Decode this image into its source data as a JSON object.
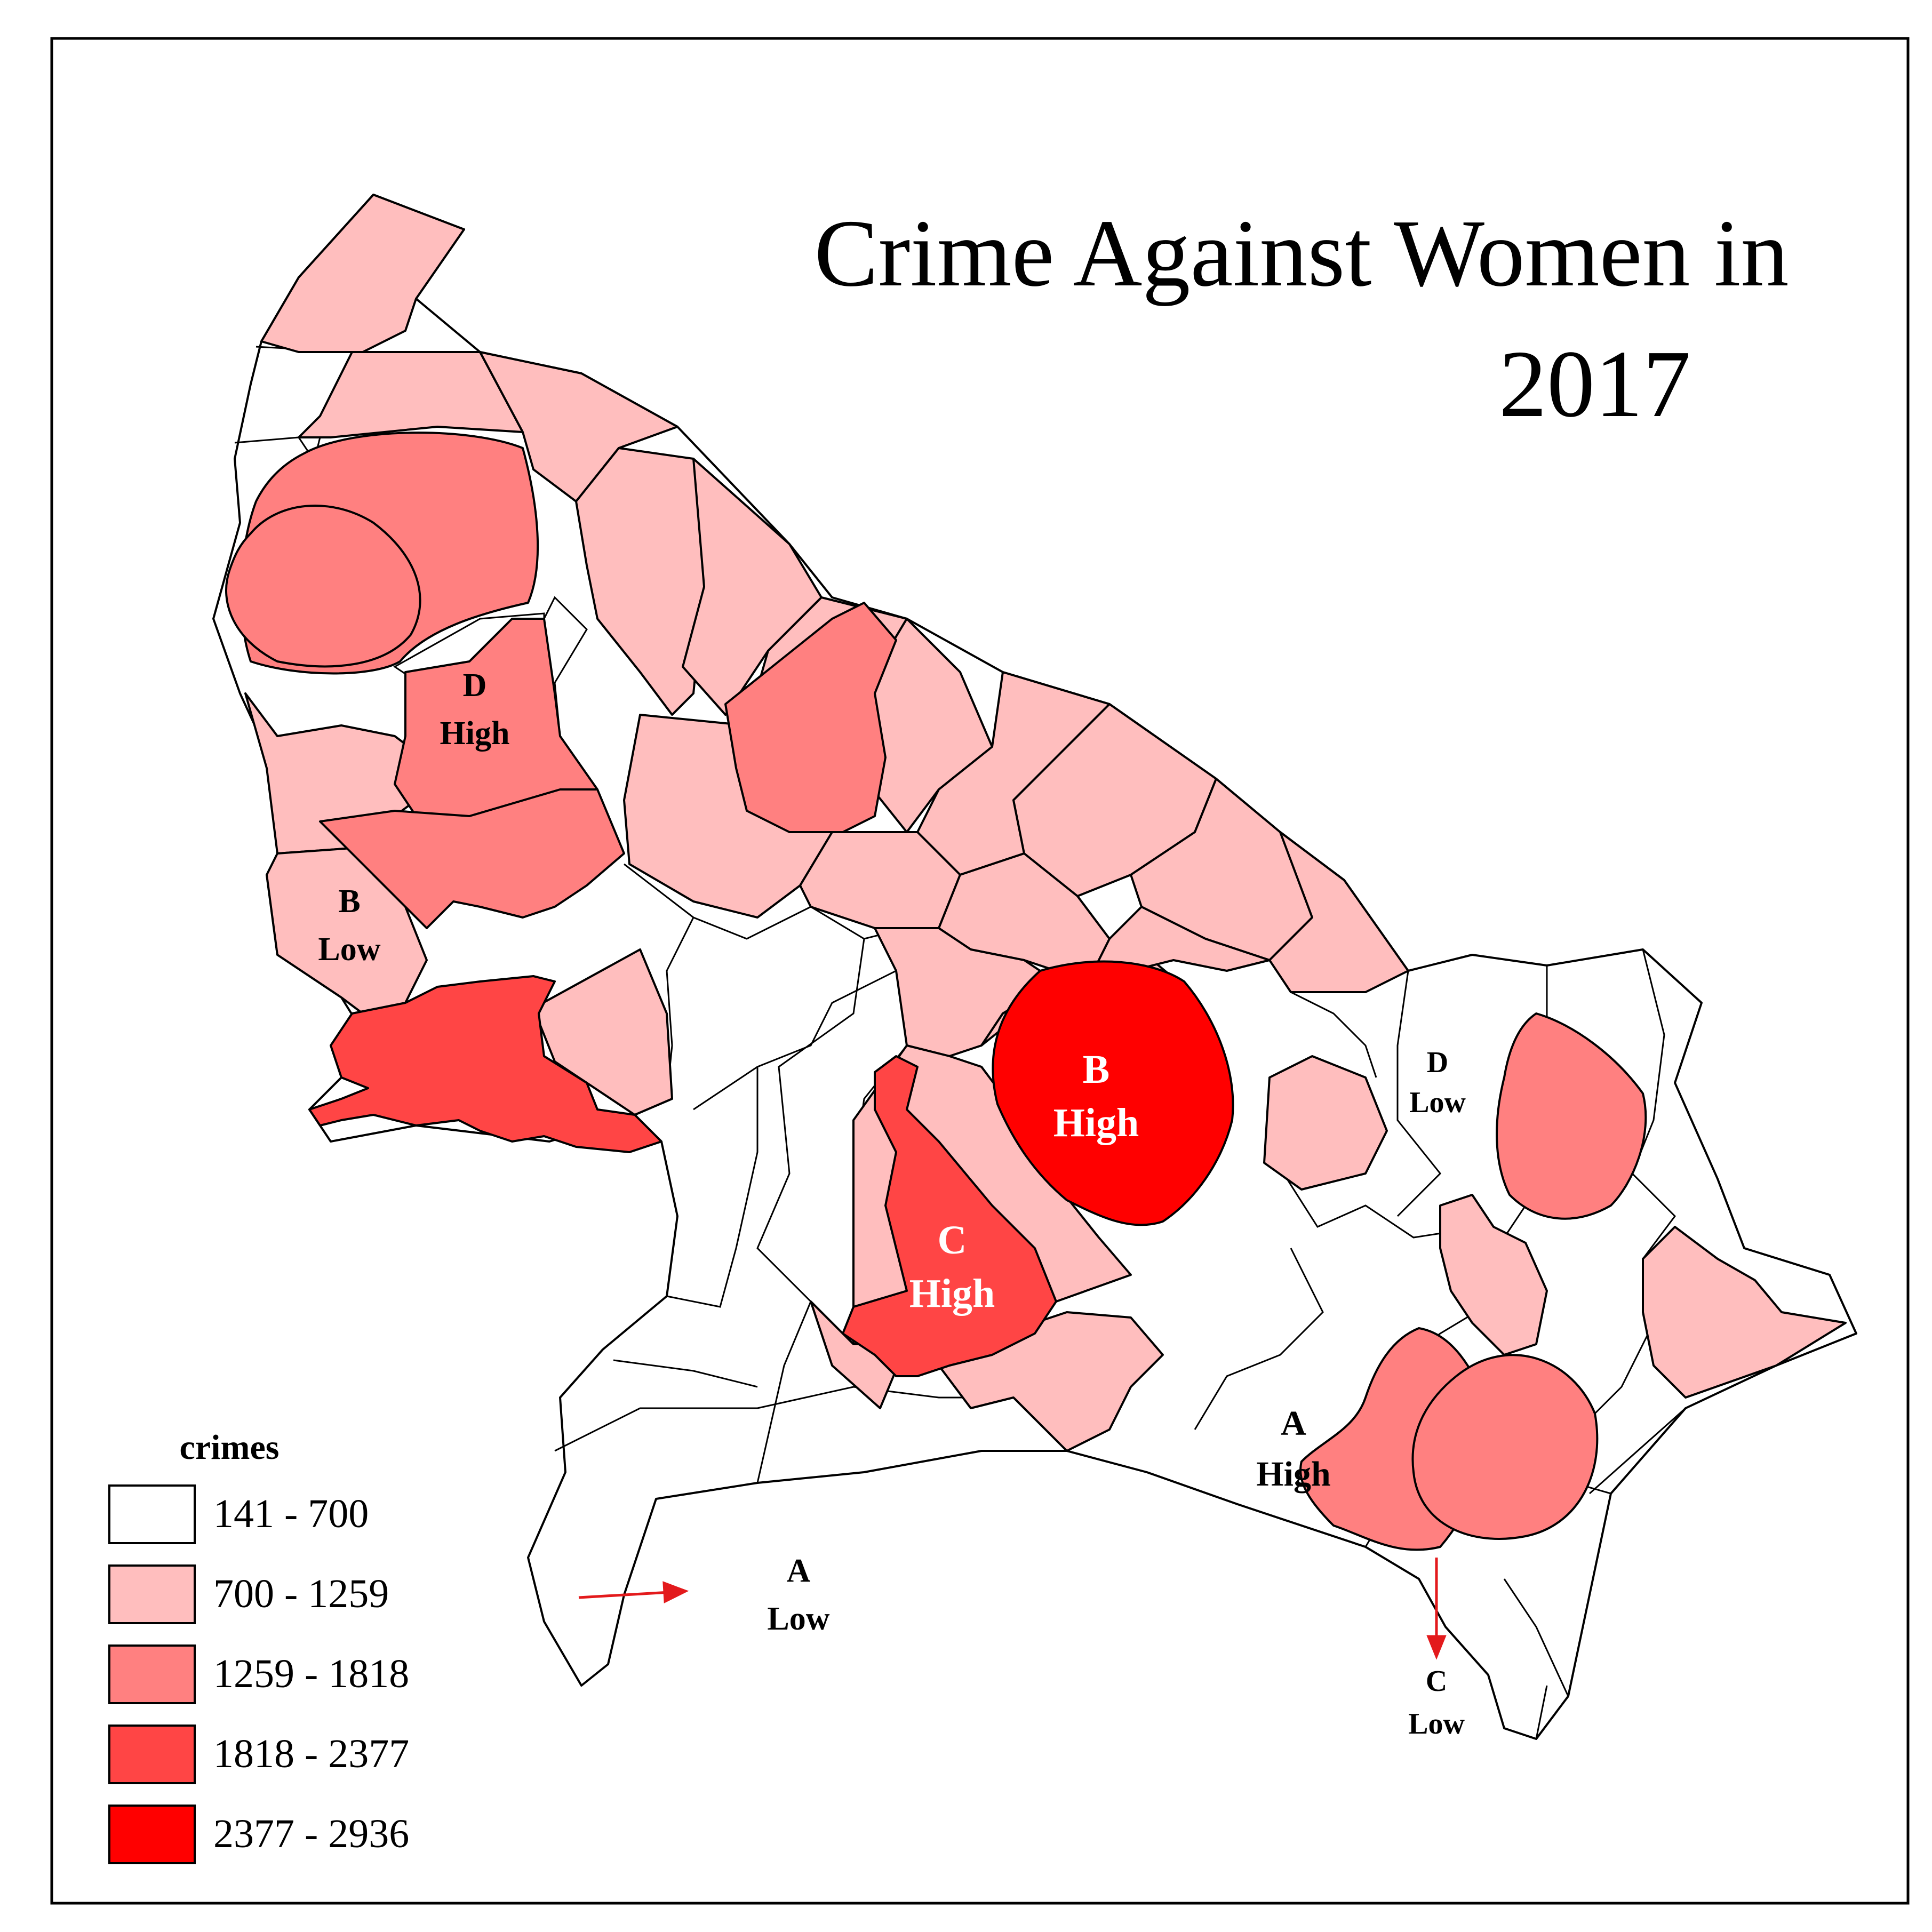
{
  "map": {
    "title_line1": "Crime Against Women in",
    "title_line2": "2017"
  },
  "legend": {
    "title": "crimes",
    "classes": [
      {
        "label": "141 - 700",
        "color": "#ffffff"
      },
      {
        "label": "700 - 1259",
        "color": "#ffbebe"
      },
      {
        "label": "1259 - 1818",
        "color": "#ff8080"
      },
      {
        "label": "1818 - 2377",
        "color": "#ff4545"
      },
      {
        "label": "2377 - 2936",
        "color": "#ff0000"
      }
    ]
  },
  "annotations": {
    "d_high": {
      "letter": "D",
      "level": "High"
    },
    "b_low": {
      "letter": "B",
      "level": "Low"
    },
    "b_high": {
      "letter": "B",
      "level": "High"
    },
    "c_high": {
      "letter": "C",
      "level": "High"
    },
    "d_low": {
      "letter": "D",
      "level": "Low"
    },
    "a_high": {
      "letter": "A",
      "level": "High"
    },
    "a_low": {
      "letter": "A",
      "level": "Low"
    },
    "c_low": {
      "letter": "C",
      "level": "Low"
    }
  },
  "colors": {
    "outline": "#000000",
    "arrow": "#e31a1c",
    "label_dark": "#000000",
    "label_light": "#ffffff"
  }
}
